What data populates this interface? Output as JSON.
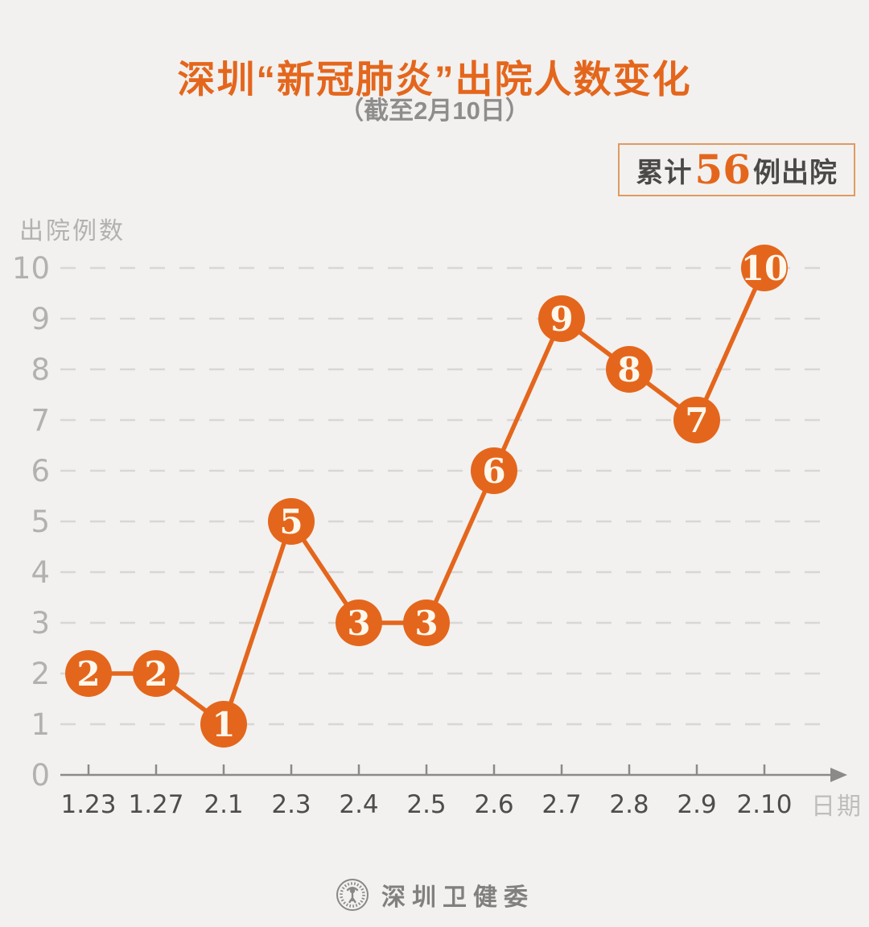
{
  "title": "深圳“新冠肺炎”出院人数变化",
  "subtitle": "（截至2月10日）",
  "badge": {
    "prefix": "累计",
    "number": "56",
    "suffix": "例出院"
  },
  "chart_data": {
    "type": "line",
    "categories": [
      "1.23",
      "1.27",
      "2.1",
      "2.3",
      "2.4",
      "2.5",
      "2.6",
      "2.7",
      "2.8",
      "2.9",
      "2.10"
    ],
    "values": [
      2,
      2,
      1,
      5,
      3,
      3,
      6,
      9,
      8,
      7,
      10
    ],
    "title": "深圳“新冠肺炎”出院人数变化",
    "xlabel": "日期",
    "ylabel": "出院例数",
    "ylim": [
      0,
      10
    ],
    "yticks": [
      0,
      1,
      2,
      3,
      4,
      5,
      6,
      7,
      8,
      9,
      10
    ],
    "grid": "horizontal-dashed",
    "point_labels_inside_markers": true,
    "legend": "none"
  },
  "footer": {
    "logo": "shenzhen-health-commission-seal",
    "text": "深圳卫健委"
  },
  "colors": {
    "accent_orange": "#e4661c",
    "background": "#f2f1ef",
    "grid_line": "#d9d7d4",
    "axis_line": "#8c8a88",
    "y_tick_text": "#b3b1af",
    "x_tick_text": "#4f4d4b",
    "marker_text": "#fdf7ec",
    "badge_text": "#4b4947",
    "badge_border": "#e09a63",
    "subtitle_text": "#8f8d8b",
    "axis_label_text": "#bfbdbb",
    "footer_text": "#82807e"
  }
}
